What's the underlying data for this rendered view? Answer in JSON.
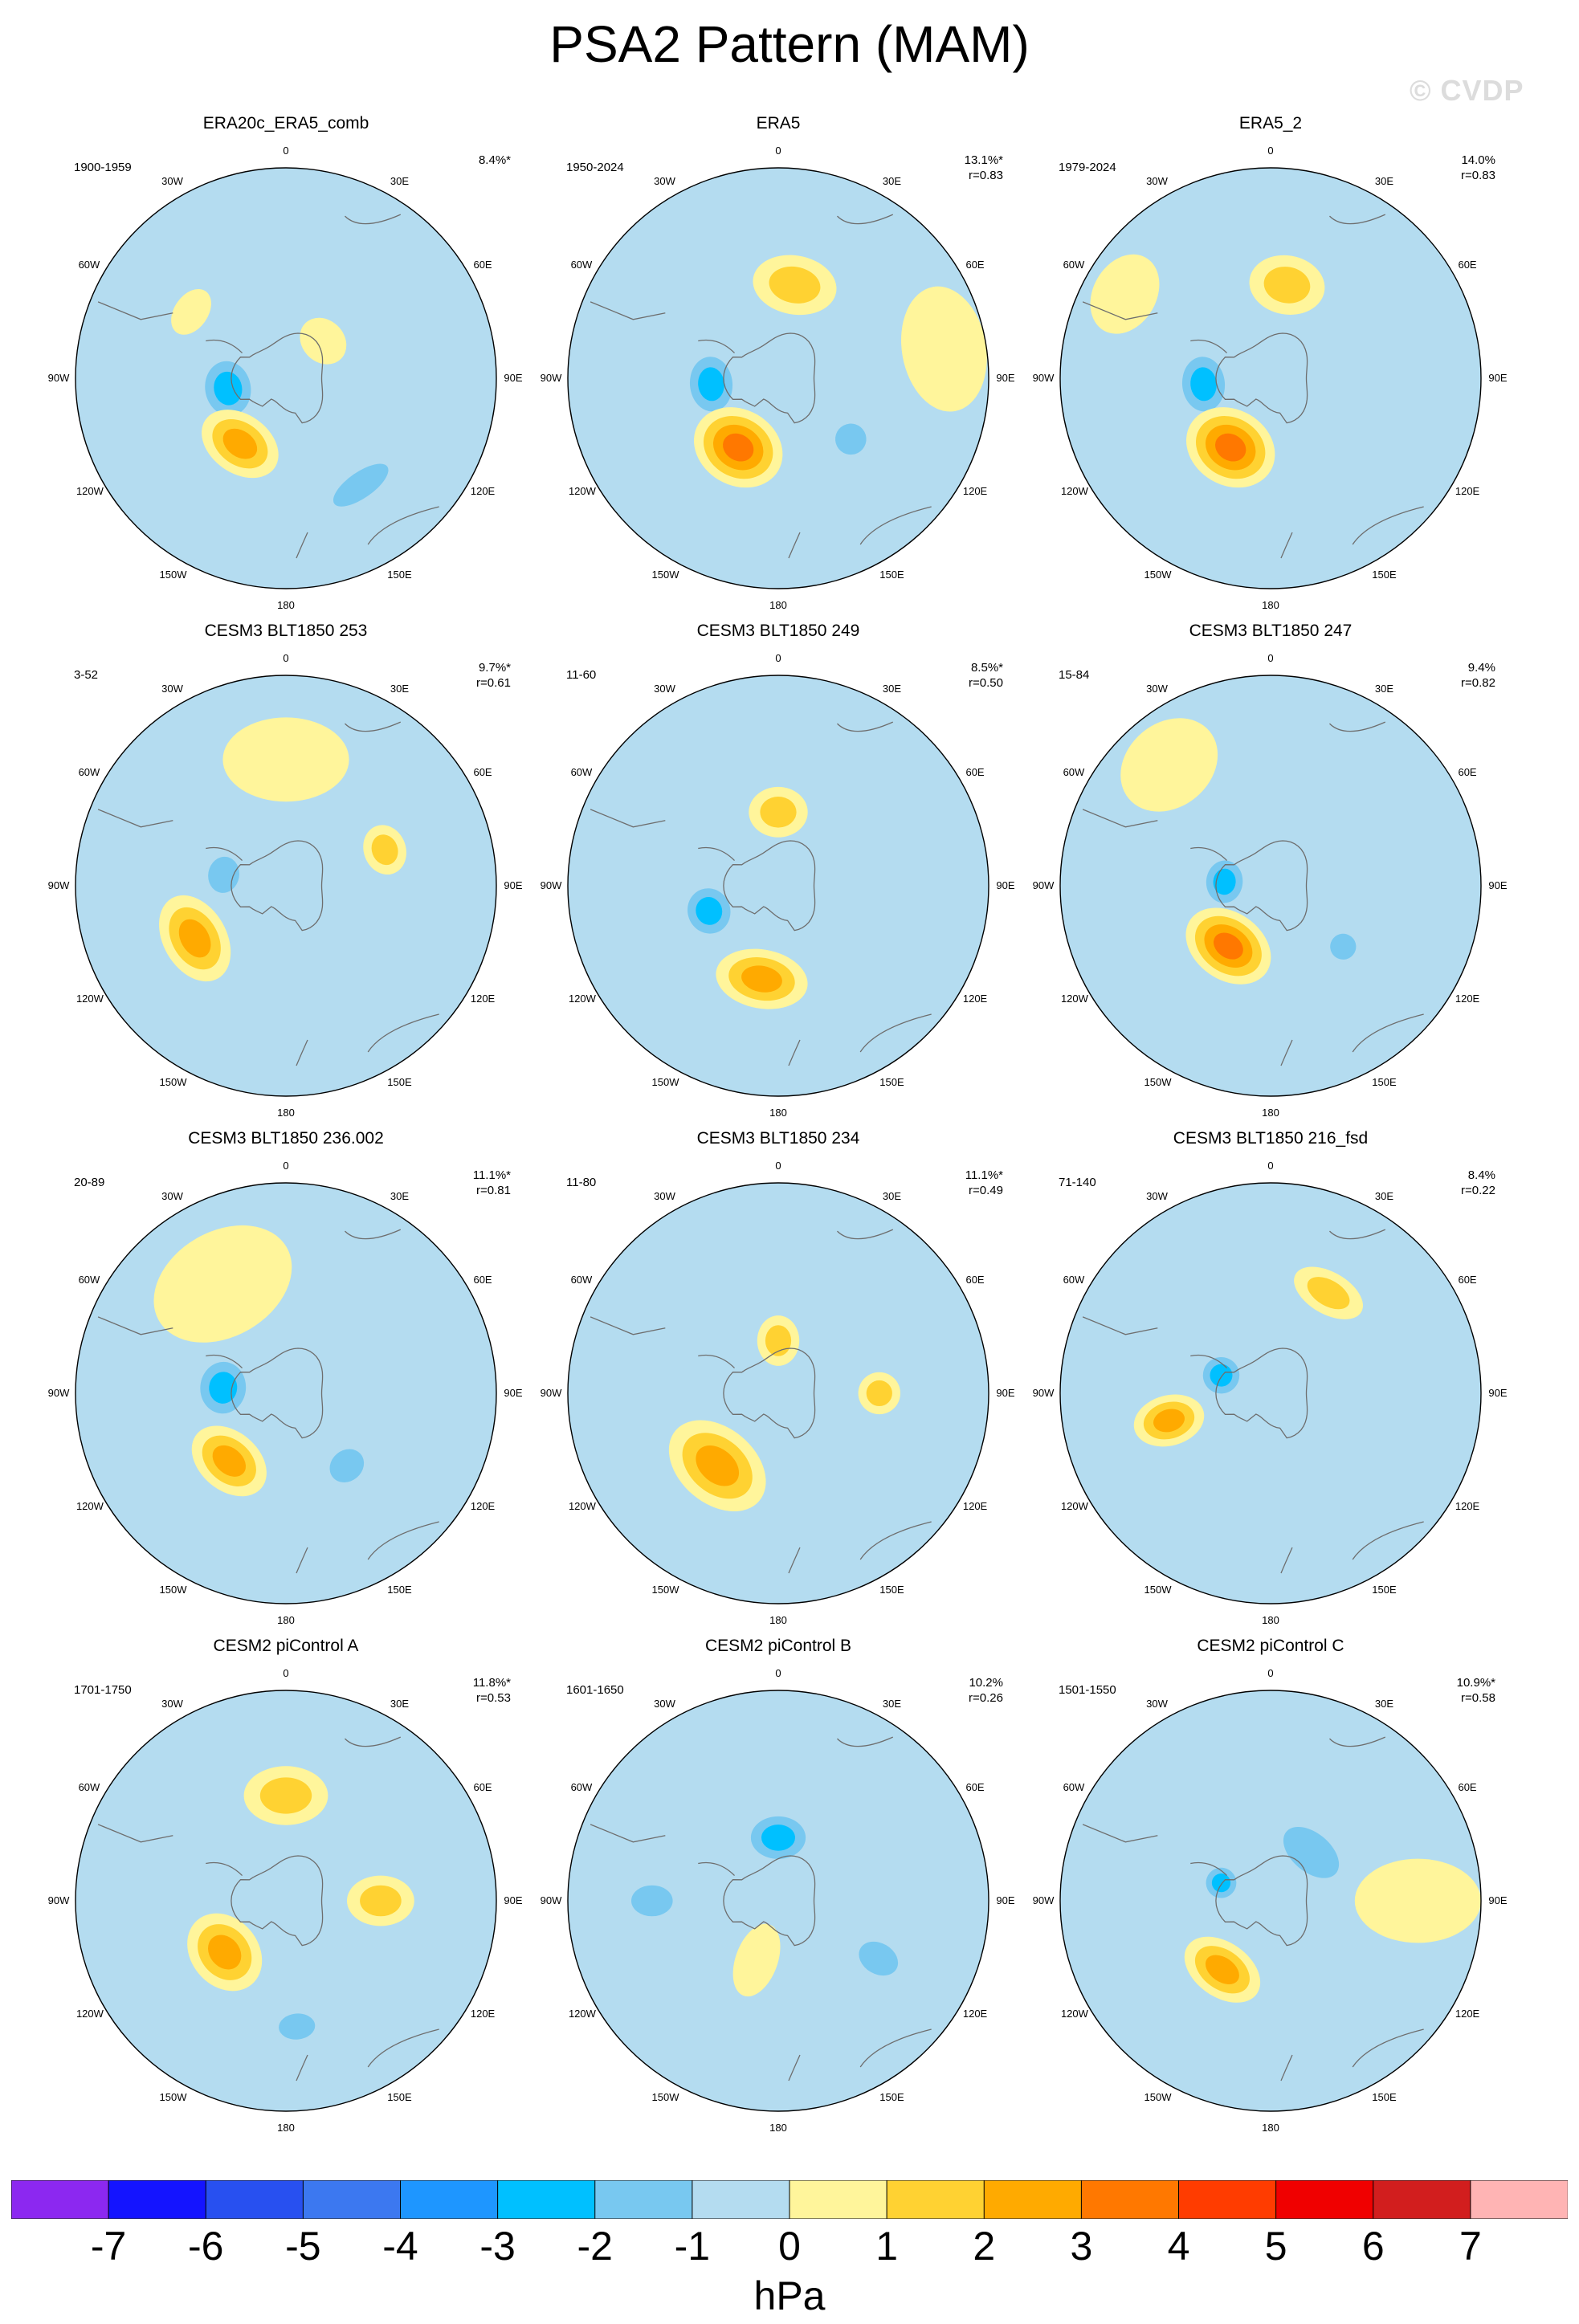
{
  "title": "PSA2 Pattern (MAM)",
  "watermark": "© CVDP",
  "units": "hPa",
  "colors": {
    "m1": "#b4dcf0",
    "m2": "#78c8f0",
    "m3": "#00c0ff",
    "m4": "#1e96ff",
    "m5": "#3c78f0",
    "m6": "#1414ff",
    "m7": "#7814f0",
    "p1": "#fff59b",
    "p2": "#ffd232",
    "p3": "#ffaa00",
    "p4": "#ff7800",
    "p5": "#ff3c00",
    "p6": "#f00000",
    "p7": "#d21e1e",
    "end_neg": "#8c28f0",
    "end_pos": "#ffb4b4",
    "coast": "#6e6e6e"
  },
  "colorbar": {
    "colors": [
      "#8c28f0",
      "#1414ff",
      "#2850f0",
      "#3c78f0",
      "#1e96ff",
      "#00c0ff",
      "#78c8f0",
      "#b4dcf0",
      "#fff59b",
      "#ffd232",
      "#ffaa00",
      "#ff7800",
      "#ff3c00",
      "#f00000",
      "#d21e1e",
      "#ffb4b4"
    ],
    "ticks": [
      "-7",
      "-6",
      "-5",
      "-4",
      "-3",
      "-2",
      "-1",
      "0",
      "1",
      "2",
      "3",
      "4",
      "5",
      "6",
      "7"
    ]
  },
  "lon_labels": {
    "top": "0",
    "bottom": "180",
    "r30E": "30E",
    "r60E": "60E",
    "r90E": "90E",
    "r120E": "120E",
    "r150E": "150E",
    "l30W": "30W",
    "l60W": "60W",
    "l90W": "90W",
    "l120W": "120W",
    "l150W": "150W"
  },
  "panels": [
    {
      "title": "ERA20c_ERA5_comb",
      "period": "1900-1959",
      "pct": "8.4%*",
      "r": "",
      "features": [
        {
          "lon": 260,
          "r": 0.28,
          "v": -3,
          "sx": 0.18,
          "sy": 0.15
        },
        {
          "lon": 215,
          "r": 0.38,
          "v": 3,
          "sx": 0.2,
          "sy": 0.14
        },
        {
          "lon": 145,
          "r": 0.62,
          "v": -2,
          "sx": 0.25,
          "sy": 0.1
        },
        {
          "lon": 305,
          "r": 0.55,
          "v": 1,
          "sx": 0.12,
          "sy": 0.08
        },
        {
          "lon": 45,
          "r": 0.25,
          "v": 1,
          "sx": 0.12,
          "sy": 0.1
        }
      ]
    },
    {
      "title": "ERA5",
      "period": "1950-2024",
      "pct": "13.1%*",
      "r": "r=0.83",
      "features": [
        {
          "lon": 265,
          "r": 0.32,
          "v": -3,
          "sx": 0.18,
          "sy": 0.14
        },
        {
          "lon": 210,
          "r": 0.38,
          "v": 4,
          "sx": 0.22,
          "sy": 0.18
        },
        {
          "lon": 10,
          "r": 0.45,
          "v": 2,
          "sx": 0.2,
          "sy": 0.14
        },
        {
          "lon": 130,
          "r": 0.45,
          "v": -2,
          "sx": 0.12,
          "sy": 0.12
        },
        {
          "lon": 80,
          "r": 0.8,
          "v": 1,
          "sx": 0.3,
          "sy": 0.2
        }
      ]
    },
    {
      "title": "ERA5_2",
      "period": "1979-2024",
      "pct": "14.0%",
      "r": "r=0.83",
      "features": [
        {
          "lon": 265,
          "r": 0.32,
          "v": -3,
          "sx": 0.18,
          "sy": 0.14
        },
        {
          "lon": 210,
          "r": 0.38,
          "v": 4,
          "sx": 0.22,
          "sy": 0.18
        },
        {
          "lon": 10,
          "r": 0.45,
          "v": 2,
          "sx": 0.18,
          "sy": 0.14
        },
        {
          "lon": 300,
          "r": 0.8,
          "v": 1,
          "sx": 0.2,
          "sy": 0.15
        }
      ]
    },
    {
      "title": "CESM3 BLT1850 253",
      "period": "3-52",
      "pct": "9.7%*",
      "r": "r=0.61",
      "features": [
        {
          "lon": 280,
          "r": 0.3,
          "v": -2,
          "sx": 0.14,
          "sy": 0.12
        },
        {
          "lon": 240,
          "r": 0.5,
          "v": 3,
          "sx": 0.22,
          "sy": 0.15
        },
        {
          "lon": 70,
          "r": 0.5,
          "v": 2,
          "sx": 0.12,
          "sy": 0.1
        },
        {
          "lon": 0,
          "r": 0.6,
          "v": 1,
          "sx": 0.3,
          "sy": 0.2
        }
      ]
    },
    {
      "title": "CESM3 BLT1850 249",
      "period": "11-60",
      "pct": "8.5%*",
      "r": "r=0.50",
      "features": [
        {
          "lon": 250,
          "r": 0.35,
          "v": -3,
          "sx": 0.15,
          "sy": 0.14
        },
        {
          "lon": 190,
          "r": 0.45,
          "v": 3,
          "sx": 0.22,
          "sy": 0.14
        },
        {
          "lon": 0,
          "r": 0.35,
          "v": 2,
          "sx": 0.14,
          "sy": 0.12
        },
        {
          "lon": 60,
          "r": 0.35,
          "v": -1,
          "sx": 0.1,
          "sy": 0.1
        }
      ]
    },
    {
      "title": "CESM3 BLT1850 247",
      "period": "15-84",
      "pct": "9.4%",
      "r": "r=0.82",
      "features": [
        {
          "lon": 275,
          "r": 0.22,
          "v": -3,
          "sx": 0.14,
          "sy": 0.12
        },
        {
          "lon": 215,
          "r": 0.35,
          "v": 4,
          "sx": 0.22,
          "sy": 0.16
        },
        {
          "lon": 130,
          "r": 0.45,
          "v": -2,
          "sx": 0.1,
          "sy": 0.1
        },
        {
          "lon": 320,
          "r": 0.75,
          "v": 1,
          "sx": 0.25,
          "sy": 0.2
        }
      ]
    },
    {
      "title": "CESM3 BLT1850 236.002",
      "period": "20-89",
      "pct": "11.1%*",
      "r": "r=0.81",
      "features": [
        {
          "lon": 275,
          "r": 0.3,
          "v": -3,
          "sx": 0.17,
          "sy": 0.15
        },
        {
          "lon": 220,
          "r": 0.42,
          "v": 3,
          "sx": 0.2,
          "sy": 0.14
        },
        {
          "lon": 140,
          "r": 0.45,
          "v": -2,
          "sx": 0.14,
          "sy": 0.12
        },
        {
          "lon": 330,
          "r": 0.6,
          "v": 1,
          "sx": 0.35,
          "sy": 0.25
        }
      ]
    },
    {
      "title": "CESM3 BLT1850 234",
      "period": "11-80",
      "pct": "11.1%*",
      "r": "r=0.49",
      "features": [
        {
          "lon": 220,
          "r": 0.45,
          "v": 3,
          "sx": 0.26,
          "sy": 0.18
        },
        {
          "lon": 0,
          "r": 0.25,
          "v": 2,
          "sx": 0.1,
          "sy": 0.12
        },
        {
          "lon": 90,
          "r": 0.48,
          "v": 2,
          "sx": 0.1,
          "sy": 0.1
        },
        {
          "lon": 300,
          "r": 0.4,
          "v": -1,
          "sx": 0.14,
          "sy": 0.1
        }
      ]
    },
    {
      "title": "CESM3 BLT1850 216_fsd",
      "period": "71-140",
      "pct": "8.4%",
      "r": "r=0.22",
      "features": [
        {
          "lon": 290,
          "r": 0.25,
          "v": -3,
          "sx": 0.12,
          "sy": 0.12
        },
        {
          "lon": 255,
          "r": 0.5,
          "v": 3,
          "sx": 0.12,
          "sy": 0.17
        },
        {
          "lon": 30,
          "r": 0.55,
          "v": 2,
          "sx": 0.18,
          "sy": 0.1
        },
        {
          "lon": 150,
          "r": 0.7,
          "v": -1,
          "sx": 0.3,
          "sy": 0.15
        }
      ]
    },
    {
      "title": "CESM2 piControl A",
      "period": "1701-1750",
      "pct": "11.8%*",
      "r": "r=0.53",
      "features": [
        {
          "lon": 230,
          "r": 0.38,
          "v": 3,
          "sx": 0.2,
          "sy": 0.16
        },
        {
          "lon": 0,
          "r": 0.5,
          "v": 2,
          "sx": 0.2,
          "sy": 0.14
        },
        {
          "lon": 90,
          "r": 0.45,
          "v": 2,
          "sx": 0.12,
          "sy": 0.16
        },
        {
          "lon": 175,
          "r": 0.6,
          "v": -2,
          "sx": 0.14,
          "sy": 0.1
        }
      ]
    },
    {
      "title": "CESM2 piControl B",
      "period": "1601-1650",
      "pct": "10.2%",
      "r": "r=0.26",
      "features": [
        {
          "lon": 0,
          "r": 0.3,
          "v": -3,
          "sx": 0.18,
          "sy": 0.14
        },
        {
          "lon": 270,
          "r": 0.6,
          "v": -2,
          "sx": 0.12,
          "sy": 0.16
        },
        {
          "lon": 120,
          "r": 0.55,
          "v": -2,
          "sx": 0.12,
          "sy": 0.16
        },
        {
          "lon": 200,
          "r": 0.3,
          "v": 1,
          "sx": 0.1,
          "sy": 0.18
        }
      ]
    },
    {
      "title": "CESM2 piControl C",
      "period": "1501-1550",
      "pct": "10.9%*",
      "r": "r=0.58",
      "features": [
        {
          "lon": 290,
          "r": 0.25,
          "v": -3,
          "sx": 0.1,
          "sy": 0.1
        },
        {
          "lon": 40,
          "r": 0.3,
          "v": -2,
          "sx": 0.25,
          "sy": 0.15
        },
        {
          "lon": 215,
          "r": 0.4,
          "v": 3,
          "sx": 0.2,
          "sy": 0.13
        },
        {
          "lon": 90,
          "r": 0.7,
          "v": 1,
          "sx": 0.2,
          "sy": 0.3
        }
      ]
    }
  ]
}
